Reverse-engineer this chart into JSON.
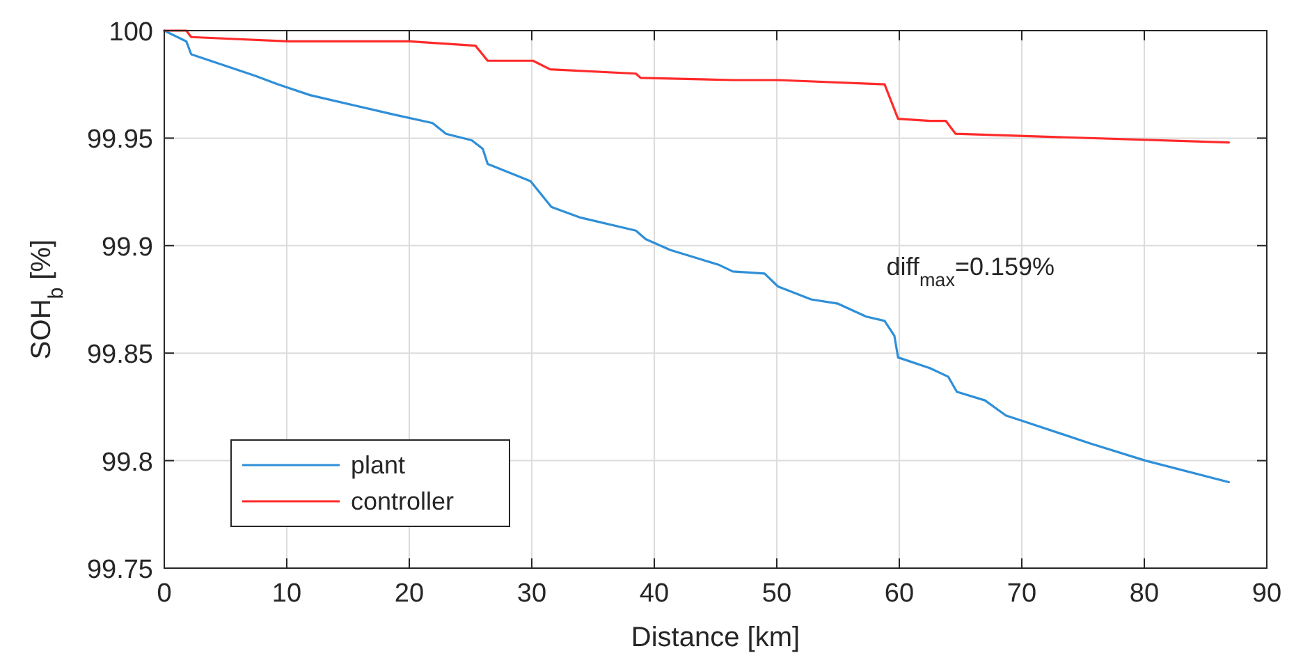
{
  "chart_data": {
    "type": "line",
    "xlabel": "Distance [km]",
    "ylabel": "SOH$_{b}$ [%]",
    "xlim": [
      0,
      90
    ],
    "ylim": [
      99.75,
      100
    ],
    "xticks": [
      0,
      10,
      20,
      30,
      40,
      50,
      60,
      70,
      80,
      90
    ],
    "yticks": [
      {
        "value": 99.75,
        "label": "99.75"
      },
      {
        "value": 99.8,
        "label": "99.8"
      },
      {
        "value": 99.85,
        "label": "99.85"
      },
      {
        "value": 99.9,
        "label": "99.9"
      },
      {
        "value": 99.95,
        "label": "99.95"
      },
      {
        "value": 100,
        "label": "100"
      }
    ],
    "grid": true,
    "legend": "bottom left",
    "line_style": "solid",
    "marker": "none",
    "annotations": [
      "diff$_{max}$=0.159%"
    ],
    "series": [
      {
        "name": "plant",
        "color": "#2f8fd8",
        "x": [
          0,
          1.8,
          2.2,
          7.4,
          9.3,
          11.9,
          18.7,
          21.9,
          23.0,
          25.1,
          26.0,
          26.4,
          29.9,
          31.6,
          34.0,
          38.5,
          39.3,
          41.3,
          45.3,
          46.4,
          49.0,
          50.1,
          52.8,
          55.0,
          57.3,
          58.8,
          59.6,
          59.9,
          62.5,
          64.0,
          64.7,
          67.0,
          68.7,
          70.3,
          75.6,
          80.1,
          86.9
        ],
        "values": [
          100,
          99.995,
          99.989,
          99.979,
          99.975,
          99.97,
          99.961,
          99.957,
          99.952,
          99.949,
          99.945,
          99.938,
          99.93,
          99.918,
          99.913,
          99.907,
          99.903,
          99.898,
          99.891,
          99.888,
          99.887,
          99.881,
          99.875,
          99.873,
          99.867,
          99.865,
          99.858,
          99.848,
          99.843,
          99.839,
          99.832,
          99.828,
          99.821,
          99.818,
          99.808,
          99.8,
          99.79
        ]
      },
      {
        "name": "controller",
        "color": "#ff2a2a",
        "x": [
          0,
          1.8,
          2.2,
          10.1,
          20.0,
          25.4,
          26.4,
          30.1,
          31.5,
          38.5,
          38.9,
          46.4,
          50.1,
          58.8,
          59.9,
          62.5,
          63.8,
          64.6,
          86.9
        ],
        "values": [
          100,
          100,
          99.997,
          99.995,
          99.995,
          99.993,
          99.986,
          99.986,
          99.982,
          99.98,
          99.978,
          99.977,
          99.977,
          99.975,
          99.959,
          99.958,
          99.958,
          99.952,
          99.948
        ]
      }
    ]
  }
}
